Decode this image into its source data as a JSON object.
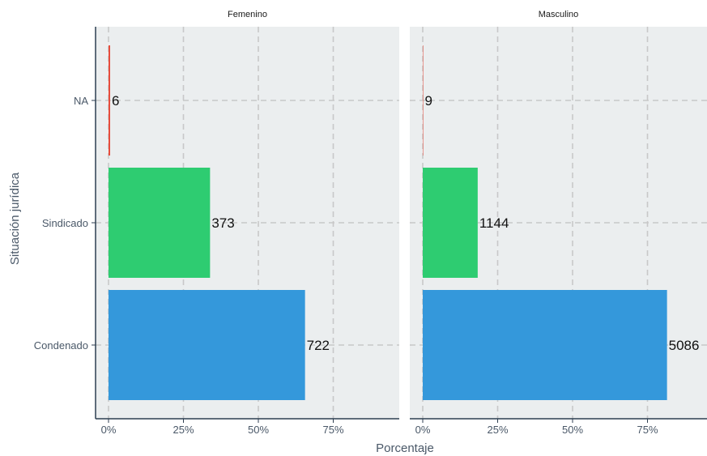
{
  "chart_data": {
    "type": "bar",
    "orientation": "horizontal",
    "xlabel": "Porcentaje",
    "ylabel": "Situación jurídica",
    "categories": [
      "NA",
      "Sindicado",
      "Condenado"
    ],
    "x_ticks": [
      "0%",
      "25%",
      "50%",
      "75%"
    ],
    "xlim": [
      0,
      0.97
    ],
    "grid": true,
    "legend": "none",
    "category_colors": {
      "NA": "#e74c3c",
      "Sindicado": "#2ecc71",
      "Condenado": "#3498db"
    },
    "panel_background": "#ebeeef",
    "grid_color": "#c8c8c8",
    "panels": [
      {
        "name": "Femenino",
        "bars": [
          {
            "category": "NA",
            "value": 0.0054,
            "label": "6"
          },
          {
            "category": "Sindicado",
            "value": 0.3388,
            "label": "373"
          },
          {
            "category": "Condenado",
            "value": 0.6558,
            "label": "722"
          }
        ]
      },
      {
        "name": "Masculino",
        "bars": [
          {
            "category": "NA",
            "value": 0.0014,
            "label": "9"
          },
          {
            "category": "Sindicado",
            "value": 0.1834,
            "label": "1144"
          },
          {
            "category": "Condenado",
            "value": 0.8152,
            "label": "5086"
          }
        ]
      }
    ]
  }
}
